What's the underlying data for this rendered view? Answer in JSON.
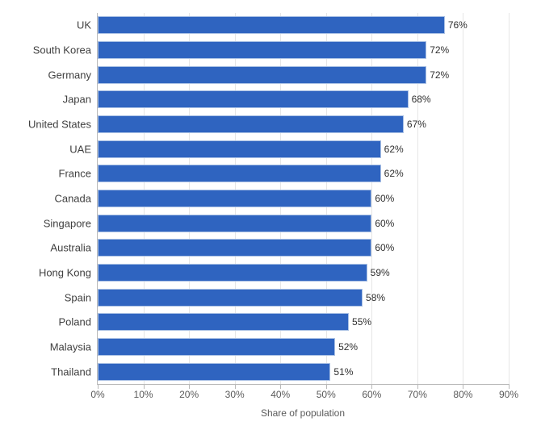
{
  "chart": {
    "type": "bar-horizontal",
    "categories": [
      "UK",
      "South Korea",
      "Germany",
      "Japan",
      "United States",
      "UAE",
      "France",
      "Canada",
      "Singapore",
      "Australia",
      "Hong Kong",
      "Spain",
      "Poland",
      "Malaysia",
      "Thailand"
    ],
    "values": [
      76,
      72,
      72,
      68,
      67,
      62,
      62,
      60,
      60,
      60,
      59,
      58,
      55,
      52,
      51
    ],
    "value_labels": [
      "76%",
      "72%",
      "72%",
      "68%",
      "67%",
      "62%",
      "62%",
      "60%",
      "60%",
      "60%",
      "59%",
      "58%",
      "55%",
      "52%",
      "51%"
    ],
    "bar_color": "#2f64c0",
    "bar_border_color": "#a9c0e4",
    "background_color": "#ffffff",
    "grid_color": "#e6e6e6",
    "axis_color": "#b9b9b9",
    "x_axis": {
      "min": 0,
      "max": 90,
      "tick_step": 10,
      "tick_labels": [
        "0%",
        "10%",
        "20%",
        "30%",
        "40%",
        "50%",
        "60%",
        "70%",
        "80%",
        "90%"
      ],
      "title": "Share of population"
    },
    "category_label_fontsize": 13,
    "value_label_fontsize": 12,
    "tick_label_fontsize": 12,
    "axis_title_fontsize": 12,
    "text_color": "#404040",
    "value_text_color": "#2f2f2f",
    "tick_text_color": "#5a5a5a"
  }
}
